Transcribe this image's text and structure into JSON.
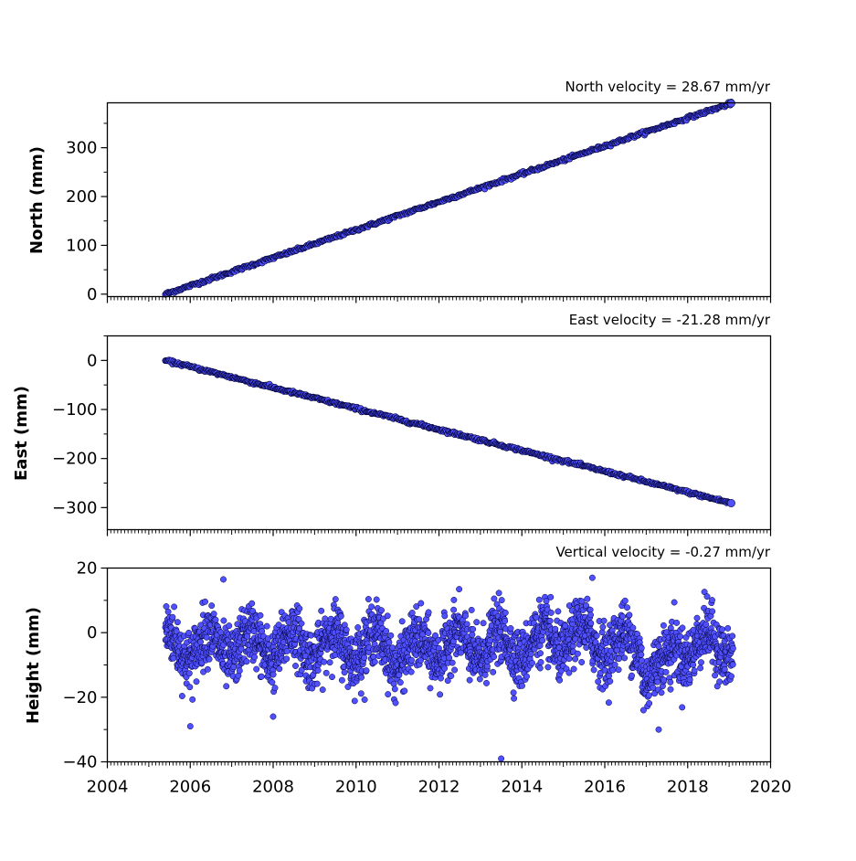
{
  "chart_data": [
    {
      "type": "scatter",
      "title": "North velocity = 28.67 mm/yr",
      "xlabel": "",
      "ylabel": "North (mm)",
      "xlim": [
        2004,
        2020
      ],
      "ylim": [
        -5,
        392
      ],
      "yticks": [
        "0",
        "100",
        "200",
        "300"
      ],
      "start": {
        "x": 2005.4,
        "y": 0
      },
      "end": {
        "x": 2019.05,
        "y": 391
      },
      "series": [
        {
          "values": "linear trend from (2005.4, 0) to (2019.05, 391) mm with small scatter, daily positions"
        }
      ]
    },
    {
      "type": "scatter",
      "title": "East velocity = -21.28 mm/yr",
      "xlabel": "",
      "ylabel": "East (mm)",
      "xlim": [
        2004,
        2020
      ],
      "ylim": [
        -345,
        50
      ],
      "yticks": [
        "0",
        "−100",
        "−200",
        "−300"
      ],
      "start": {
        "x": 2005.4,
        "y": 0
      },
      "end": {
        "x": 2019.05,
        "y": -291
      },
      "series": [
        {
          "values": "linear trend from (2005.4, 0) to (2019.05, -291) mm with small scatter, daily positions"
        }
      ]
    },
    {
      "type": "scatter",
      "title": "Vertical velocity = -0.27 mm/yr",
      "xlabel": "",
      "ylabel": "Height (mm)",
      "xlim": [
        2004,
        2020
      ],
      "ylim": [
        -40,
        20
      ],
      "yticks": [
        "20",
        "0",
        "−20",
        "−40"
      ],
      "xticks": [
        "2004",
        "2006",
        "2008",
        "2010",
        "2012",
        "2014",
        "2016",
        "2018",
        "2020"
      ],
      "series": [
        {
          "values": "noisy daily heights between about -30 and +17 mm around -4 mm, with annual oscillation; outliers near (2013.5, -39), (2015.7, 17), (2006.8, 16)"
        }
      ]
    }
  ],
  "colors": {
    "marker_fill": "#5050ff",
    "marker_edge": "#000033",
    "axes": "#000000"
  }
}
